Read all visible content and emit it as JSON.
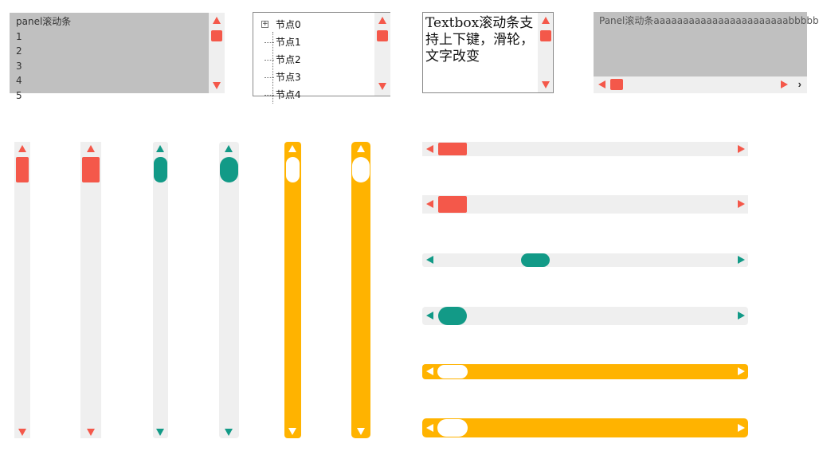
{
  "panel_demo": {
    "lines": [
      "panel滚动条",
      "1",
      "2",
      "3",
      "4",
      "5"
    ]
  },
  "tree_demo": {
    "expand_glyph": "+",
    "nodes": [
      "节点0",
      "节点1",
      "节点2",
      "节点3",
      "节点4"
    ]
  },
  "textbox_demo": {
    "text": "Textbox滚动条支持上下键，滑轮，文字改变"
  },
  "panel_horizontal_demo": {
    "text": "Panel滚动条aaaaaaaaaaaaaaaaaaaaaaabbbbb",
    "overflow_glyph": "›"
  },
  "colors": {
    "red": "#f4584a",
    "teal": "#129a87",
    "yellow": "#ffb300",
    "track": "#efefef",
    "panel_gray": "#c0c0c0"
  },
  "icons": {
    "up": "triangle-up-icon",
    "down": "triangle-down-icon",
    "left": "triangle-left-icon",
    "right": "triangle-right-icon",
    "expand": "tree-expand-icon",
    "overflow": "chevron-right-icon"
  },
  "scrollbar_styles": [
    "red-square",
    "teal-rounded",
    "yellow-pill"
  ]
}
